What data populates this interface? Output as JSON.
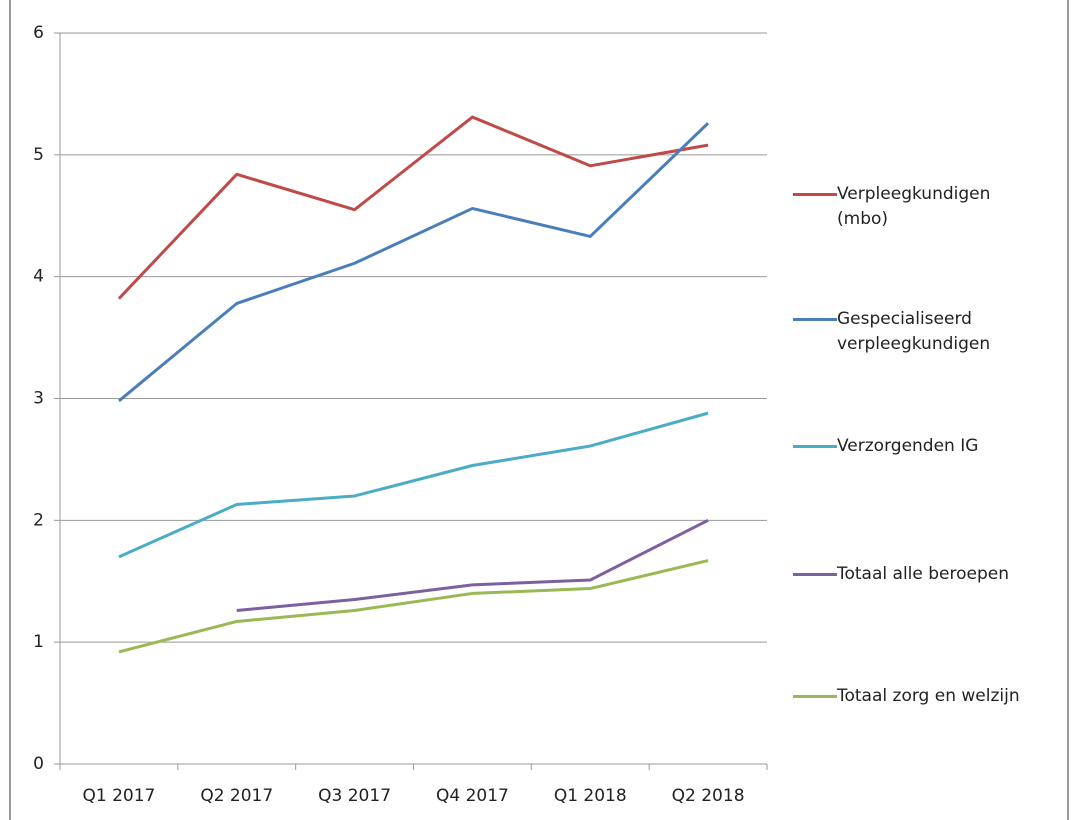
{
  "chart_data": {
    "type": "line",
    "categories": [
      "Q1 2017",
      "Q2 2017",
      "Q3 2017",
      "Q4 2017",
      "Q1 2018",
      "Q2 2018"
    ],
    "series": [
      {
        "name": "Verpleegkundigen (mbo)",
        "color": "#be4b48",
        "values": [
          3.82,
          4.84,
          4.55,
          5.31,
          4.91,
          5.08
        ]
      },
      {
        "name": "Gespecialiseerd verpleegkundigen",
        "color": "#4a7ebb",
        "values": [
          2.98,
          3.78,
          4.11,
          4.56,
          4.33,
          5.26
        ]
      },
      {
        "name": "Verzorgenden IG",
        "color": "#4bacc6",
        "values": [
          1.7,
          2.13,
          2.2,
          2.45,
          2.61,
          2.88
        ]
      },
      {
        "name": "Totaal alle beroepen",
        "color": "#7d60a0",
        "values": [
          null,
          1.26,
          1.35,
          1.47,
          1.51,
          2.0
        ]
      },
      {
        "name": "Totaal zorg en welzijn",
        "color": "#98b954",
        "values": [
          0.92,
          1.17,
          1.26,
          1.4,
          1.44,
          1.67
        ]
      }
    ],
    "ylim": [
      0,
      6
    ],
    "yticks": [
      0,
      1,
      2,
      3,
      4,
      5,
      6
    ],
    "grid": true,
    "legend": "right"
  }
}
